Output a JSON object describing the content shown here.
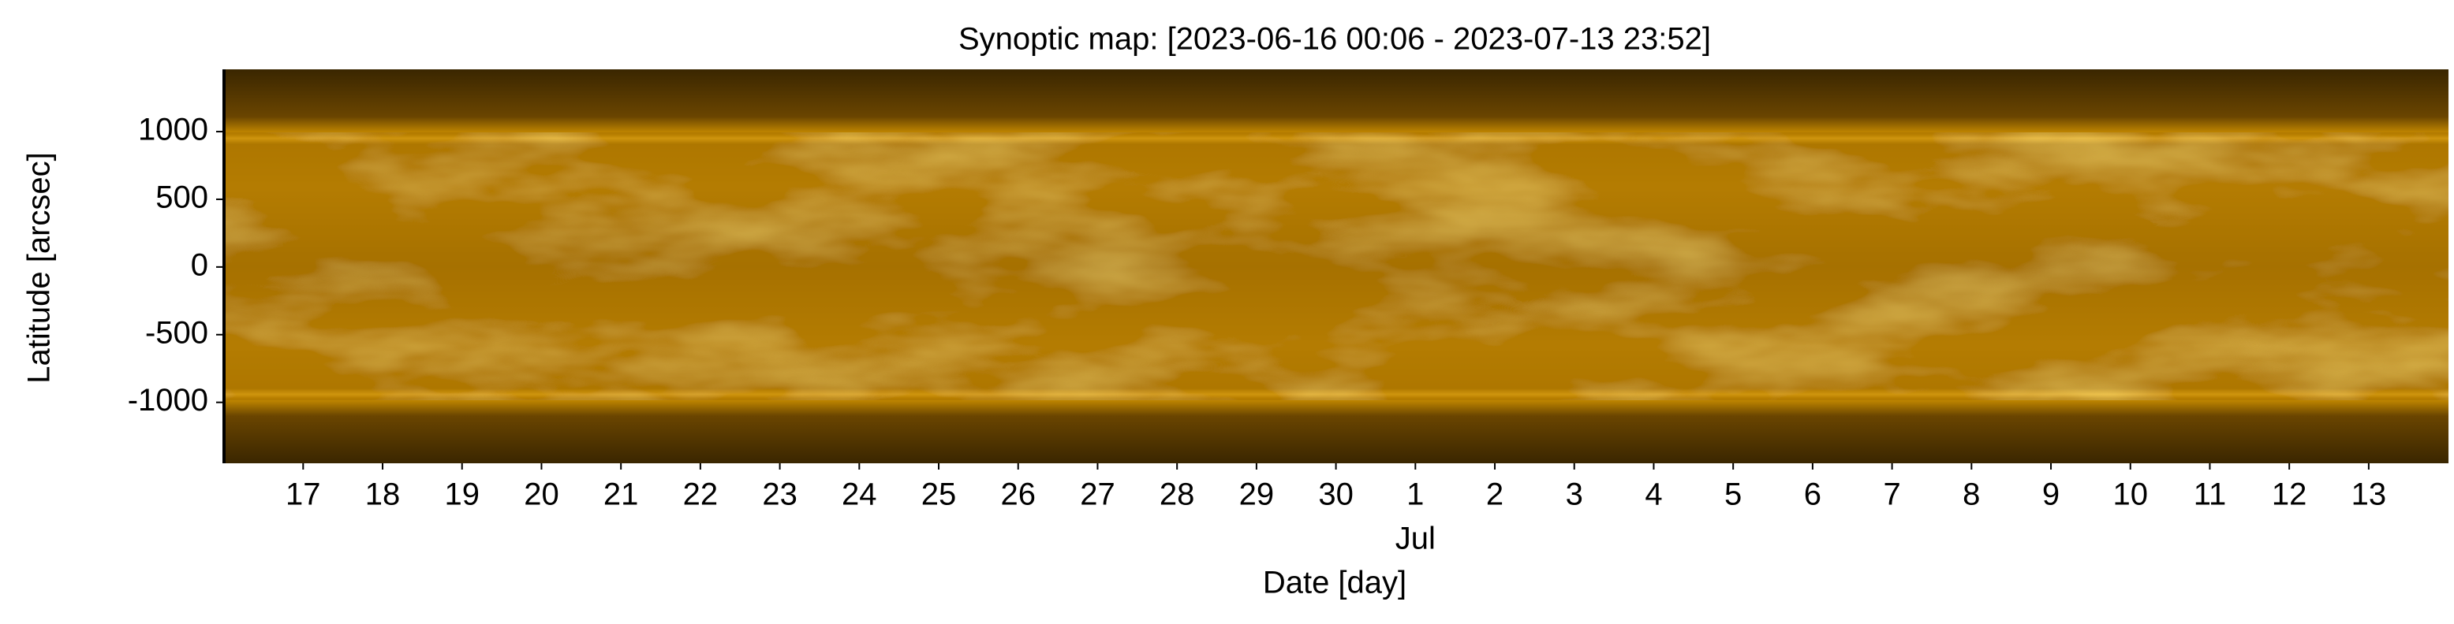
{
  "chart_data": {
    "type": "image",
    "title": "Synoptic map: [2023-06-16 00:06 - 2023-07-13 23:52]",
    "xlabel": "Date [day]",
    "ylabel": "Latitude [arcsec]",
    "ylim": [
      -1450,
      1460
    ],
    "yticks": [
      -1000,
      -500,
      0,
      500,
      1000
    ],
    "xticks": [
      "17",
      "18",
      "19",
      "20",
      "21",
      "22",
      "23",
      "24",
      "25",
      "26",
      "27",
      "28",
      "29",
      "30",
      "1",
      "2",
      "3",
      "4",
      "5",
      "6",
      "7",
      "8",
      "9",
      "10",
      "11",
      "12",
      "13"
    ],
    "xtick_sublabels": [
      null,
      null,
      null,
      null,
      null,
      null,
      null,
      null,
      null,
      null,
      null,
      null,
      null,
      null,
      "Jul",
      null,
      null,
      null,
      null,
      null,
      null,
      null,
      null,
      null,
      null,
      null,
      null
    ]
  }
}
